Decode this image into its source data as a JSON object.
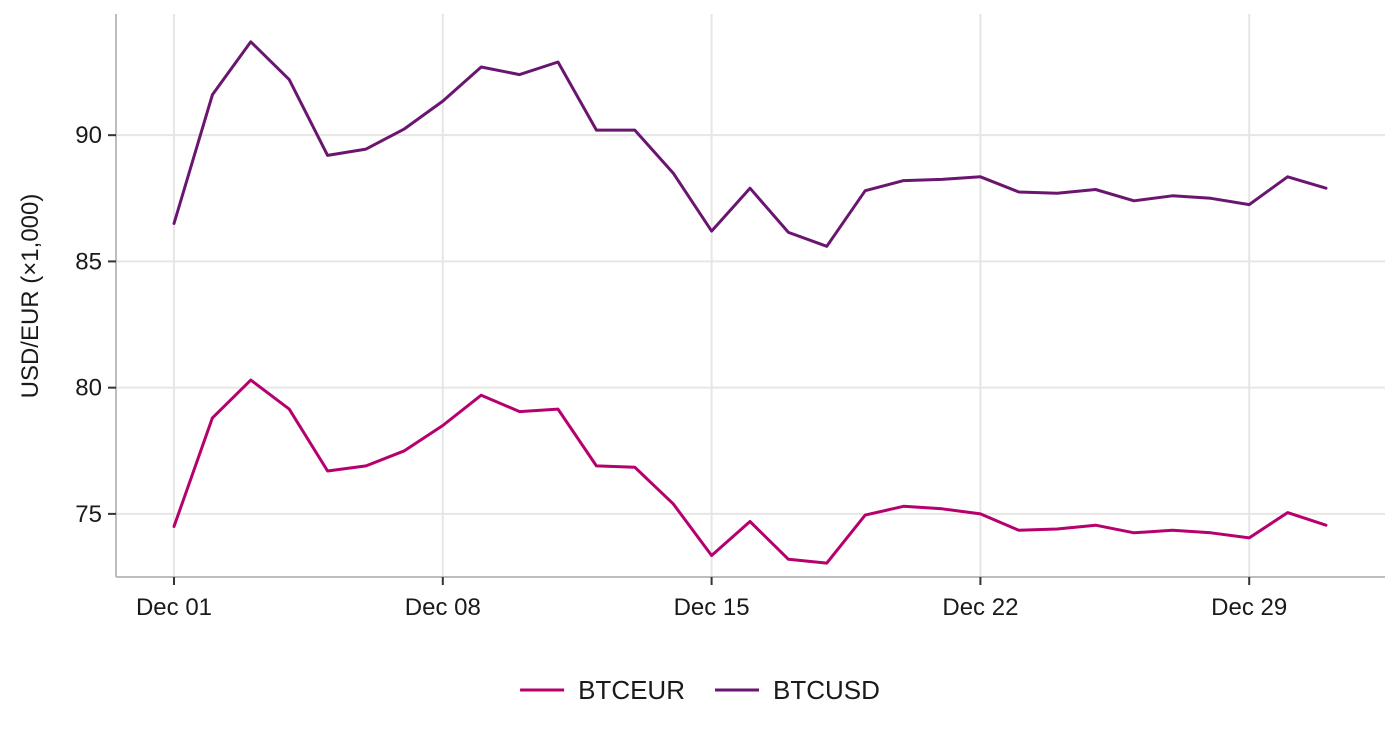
{
  "chart_data": {
    "type": "line",
    "title": "",
    "xlabel": "",
    "ylabel": "USD/EUR (×1,000)",
    "x": [
      "Dec 01",
      "Dec 02",
      "Dec 03",
      "Dec 04",
      "Dec 05",
      "Dec 06",
      "Dec 07",
      "Dec 08",
      "Dec 09",
      "Dec 10",
      "Dec 11",
      "Dec 12",
      "Dec 13",
      "Dec 14",
      "Dec 15",
      "Dec 16",
      "Dec 17",
      "Dec 18",
      "Dec 19",
      "Dec 20",
      "Dec 21",
      "Dec 22",
      "Dec 23",
      "Dec 24",
      "Dec 25",
      "Dec 26",
      "Dec 27",
      "Dec 28",
      "Dec 29",
      "Dec 30",
      "Dec 31"
    ],
    "x_ticks": [
      "Dec 01",
      "Dec 08",
      "Dec 15",
      "Dec 22",
      "Dec 29"
    ],
    "ylim": [
      72.5,
      94.8
    ],
    "y_ticks": [
      75,
      80,
      85,
      90
    ],
    "grid": true,
    "legend_position": "bottom",
    "series": [
      {
        "name": "BTCEUR",
        "color": "#b5006e",
        "values": [
          74.5,
          78.8,
          80.3,
          79.15,
          76.7,
          76.9,
          77.5,
          78.5,
          79.7,
          79.05,
          79.15,
          76.9,
          76.85,
          75.4,
          73.35,
          74.7,
          73.2,
          73.05,
          74.95,
          75.3,
          75.2,
          75.0,
          74.35,
          74.4,
          74.55,
          74.25,
          74.35,
          74.25,
          74.05,
          75.05,
          74.55
        ]
      },
      {
        "name": "BTCUSD",
        "color": "#6a1670",
        "values": [
          86.5,
          91.6,
          93.7,
          92.2,
          89.2,
          89.45,
          90.25,
          91.35,
          92.7,
          92.4,
          92.9,
          90.2,
          90.2,
          88.5,
          86.2,
          87.9,
          86.15,
          85.6,
          87.8,
          88.2,
          88.25,
          88.35,
          87.75,
          87.7,
          87.85,
          87.4,
          87.6,
          87.5,
          87.25,
          88.35,
          87.9
        ]
      }
    ]
  }
}
